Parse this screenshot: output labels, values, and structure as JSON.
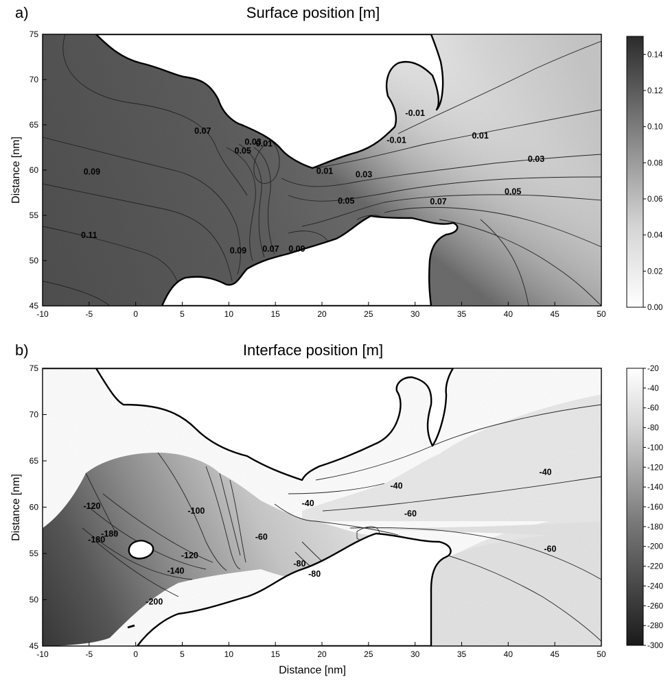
{
  "chart_data": [
    {
      "type": "heatmap",
      "panel_label": "a)",
      "title": "Surface position [m]",
      "xlabel": "",
      "ylabel": "Distance [nm]",
      "xlim": [
        -10,
        50
      ],
      "ylim": [
        45,
        75
      ],
      "xticks": [
        "-10",
        "-5",
        "0",
        "5",
        "10",
        "15",
        "20",
        "25",
        "30",
        "35",
        "40",
        "45",
        "50"
      ],
      "yticks": [
        "45",
        "50",
        "55",
        "60",
        "65",
        "70",
        "75"
      ],
      "colorbar": {
        "range": [
          0.0,
          0.15
        ],
        "ticks": [
          "0.00",
          "0.02",
          "0.04",
          "0.06",
          "0.08",
          "0.10",
          "0.12",
          "0.14"
        ],
        "low_color": "#ffffff",
        "high_color": "#2b2b2b"
      },
      "contour_labels": [
        {
          "text": "0.11",
          "x": -5.0,
          "y": 52.5
        },
        {
          "text": "0.09",
          "x": -4.7,
          "y": 59.5
        },
        {
          "text": "0.07",
          "x": 7.2,
          "y": 64.0
        },
        {
          "text": "0.05",
          "x": 11.5,
          "y": 61.8
        },
        {
          "text": "0.03",
          "x": 12.6,
          "y": 62.8
        },
        {
          "text": "0.01",
          "x": 13.8,
          "y": 62.6
        },
        {
          "text": "0.09",
          "x": 11.0,
          "y": 50.8
        },
        {
          "text": "0.07",
          "x": 14.5,
          "y": 51.0
        },
        {
          "text": "0.09",
          "x": 17.3,
          "y": 51.0
        },
        {
          "text": "0.01",
          "x": 20.3,
          "y": 59.6
        },
        {
          "text": "0.03",
          "x": 24.5,
          "y": 59.2
        },
        {
          "text": "0.05",
          "x": 22.6,
          "y": 56.3
        },
        {
          "text": "0.07",
          "x": 32.5,
          "y": 56.2
        },
        {
          "text": "-0.01",
          "x": 30.0,
          "y": 66.0
        },
        {
          "text": "-0.01",
          "x": 28.0,
          "y": 63.0
        },
        {
          "text": "0.01",
          "x": 37.0,
          "y": 63.5
        },
        {
          "text": "0.03",
          "x": 43.0,
          "y": 60.9
        },
        {
          "text": "0.05",
          "x": 40.5,
          "y": 57.3
        }
      ]
    },
    {
      "type": "heatmap",
      "panel_label": "b)",
      "title": "Interface position [m]",
      "xlabel": "Distance [nm]",
      "ylabel": "Distance [nm]",
      "xlim": [
        -10,
        50
      ],
      "ylim": [
        45,
        75
      ],
      "xticks": [
        "-10",
        "-5",
        "0",
        "5",
        "10",
        "15",
        "20",
        "25",
        "30",
        "35",
        "40",
        "45",
        "50"
      ],
      "yticks": [
        "45",
        "50",
        "55",
        "60",
        "65",
        "70",
        "75"
      ],
      "colorbar": {
        "range": [
          -300,
          -20
        ],
        "ticks": [
          "-20",
          "-40",
          "-60",
          "-80",
          "-100",
          "-120",
          "-140",
          "-160",
          "-180",
          "-200",
          "-220",
          "-240",
          "-260",
          "-280",
          "-300"
        ],
        "low_color": "#1a1a1a",
        "high_color": "#ffffff"
      },
      "contour_labels": [
        {
          "text": "-120",
          "x": -4.7,
          "y": 59.8
        },
        {
          "text": "-100",
          "x": 6.5,
          "y": 59.3
        },
        {
          "text": "-180",
          "x": -2.8,
          "y": 56.8
        },
        {
          "text": "-180",
          "x": -4.2,
          "y": 56.2
        },
        {
          "text": "-120",
          "x": 5.8,
          "y": 54.5
        },
        {
          "text": "-140",
          "x": 4.3,
          "y": 52.8
        },
        {
          "text": "-200",
          "x": 2.0,
          "y": 49.5
        },
        {
          "text": "-60",
          "x": 13.5,
          "y": 56.5
        },
        {
          "text": "-40",
          "x": 18.5,
          "y": 60.1
        },
        {
          "text": "-80",
          "x": 17.6,
          "y": 53.6
        },
        {
          "text": "-80",
          "x": 19.2,
          "y": 52.5
        },
        {
          "text": "-40",
          "x": 28.0,
          "y": 62.0
        },
        {
          "text": "-60",
          "x": 29.5,
          "y": 59.0
        },
        {
          "text": "-40",
          "x": 44.0,
          "y": 63.5
        },
        {
          "text": "-60",
          "x": 44.5,
          "y": 55.2
        }
      ]
    }
  ]
}
